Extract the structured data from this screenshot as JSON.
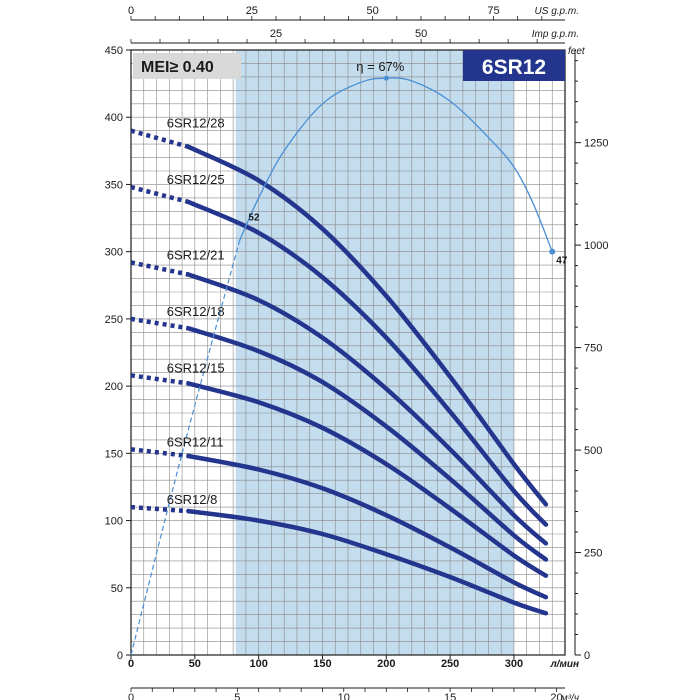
{
  "chart_data": {
    "type": "line",
    "model_badge": "6SR12",
    "mei_badge": "MEI≥ 0.40",
    "colors": {
      "curve": "#24358e",
      "efficiency": "#4a8fd6",
      "band": "#c3dcee",
      "badge_bg": "#24358e",
      "mei_bg": "#d9d9d9"
    },
    "axes": {
      "bottom_primary": {
        "unit": "л/мин",
        "range": [
          0,
          340
        ],
        "ticks": [
          "0",
          "50",
          "100",
          "150",
          "200",
          "250",
          "300"
        ]
      },
      "bottom_secondary": {
        "unit": "м³/ч",
        "range": [
          0,
          20.4
        ],
        "ticks": [
          "0",
          "5",
          "10",
          "15",
          "20"
        ]
      },
      "top_primary": {
        "unit": "US g.p.m.",
        "range": [
          0,
          89.8
        ],
        "ticks": [
          "0",
          "25",
          "50",
          "75"
        ]
      },
      "top_secondary": {
        "unit": "Imp g.p.m.",
        "range": [
          0,
          74.8
        ],
        "ticks": [
          "25",
          "50"
        ]
      },
      "left": {
        "unit": "",
        "range": [
          0,
          450
        ],
        "ticks": [
          "0",
          "50",
          "100",
          "150",
          "200",
          "250",
          "300",
          "350",
          "400",
          "450"
        ]
      },
      "right": {
        "unit": "feet",
        "range": [
          0,
          1476
        ],
        "ticks": [
          "0",
          "250",
          "500",
          "750",
          "1000",
          "1250"
        ]
      }
    },
    "operating_band": [
      82,
      300
    ],
    "series": [
      {
        "name": "6SR12/28",
        "dashed_to": 45,
        "points": [
          [
            0,
            390
          ],
          [
            45,
            378
          ],
          [
            100,
            353
          ],
          [
            150,
            317
          ],
          [
            200,
            267
          ],
          [
            250,
            207
          ],
          [
            300,
            142
          ],
          [
            325,
            112
          ]
        ]
      },
      {
        "name": "6SR12/25",
        "dashed_to": 45,
        "points": [
          [
            0,
            348
          ],
          [
            45,
            337
          ],
          [
            100,
            314
          ],
          [
            150,
            281
          ],
          [
            200,
            236
          ],
          [
            250,
            181
          ],
          [
            300,
            122
          ],
          [
            325,
            97
          ]
        ]
      },
      {
        "name": "6SR12/21",
        "dashed_to": 45,
        "points": [
          [
            0,
            292
          ],
          [
            45,
            283
          ],
          [
            100,
            264
          ],
          [
            150,
            236
          ],
          [
            200,
            198
          ],
          [
            250,
            153
          ],
          [
            300,
            104
          ],
          [
            325,
            83
          ]
        ]
      },
      {
        "name": "6SR12/18",
        "dashed_to": 45,
        "points": [
          [
            0,
            250
          ],
          [
            45,
            243
          ],
          [
            100,
            226
          ],
          [
            150,
            203
          ],
          [
            200,
            170
          ],
          [
            250,
            131
          ],
          [
            300,
            89
          ],
          [
            325,
            71
          ]
        ]
      },
      {
        "name": "6SR12/15",
        "dashed_to": 45,
        "points": [
          [
            0,
            208
          ],
          [
            45,
            202
          ],
          [
            100,
            188
          ],
          [
            150,
            169
          ],
          [
            200,
            142
          ],
          [
            250,
            109
          ],
          [
            300,
            74
          ],
          [
            325,
            59
          ]
        ]
      },
      {
        "name": "6SR12/11",
        "dashed_to": 45,
        "points": [
          [
            0,
            153
          ],
          [
            45,
            148
          ],
          [
            100,
            138
          ],
          [
            150,
            124
          ],
          [
            200,
            104
          ],
          [
            250,
            80
          ],
          [
            300,
            54
          ],
          [
            325,
            43
          ]
        ]
      },
      {
        "name": "6SR12/8",
        "dashed_to": 45,
        "points": [
          [
            0,
            110
          ],
          [
            45,
            107
          ],
          [
            100,
            100
          ],
          [
            150,
            90
          ],
          [
            200,
            75
          ],
          [
            250,
            58
          ],
          [
            300,
            39
          ],
          [
            325,
            31
          ]
        ]
      }
    ],
    "efficiency_curve": {
      "label": "η = 67%",
      "peak": [
        200,
        429
      ],
      "start_label": "52",
      "end_label": "47",
      "dashed_to": 85,
      "points": [
        [
          0,
          0
        ],
        [
          40,
          150
        ],
        [
          85,
          308
        ],
        [
          100,
          340
        ],
        [
          120,
          375
        ],
        [
          150,
          410
        ],
        [
          180,
          426
        ],
        [
          200,
          429
        ],
        [
          220,
          427
        ],
        [
          250,
          412
        ],
        [
          280,
          385
        ],
        [
          300,
          363
        ],
        [
          315,
          336
        ],
        [
          330,
          300
        ]
      ]
    }
  }
}
